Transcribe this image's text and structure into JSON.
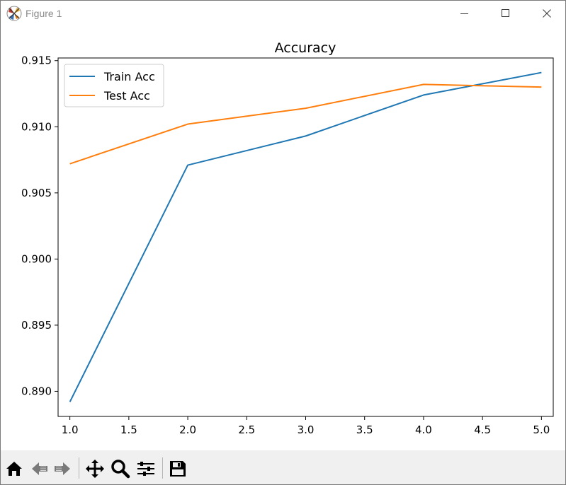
{
  "window": {
    "title": "Figure 1"
  },
  "toolbar": {
    "buttons": [
      {
        "icon": "home-icon"
      },
      {
        "icon": "back-icon"
      },
      {
        "icon": "forward-icon"
      },
      {
        "icon": "pan-icon"
      },
      {
        "icon": "zoom-icon"
      },
      {
        "icon": "configure-subplots-icon"
      },
      {
        "icon": "save-icon"
      }
    ]
  },
  "chart_data": {
    "type": "line",
    "title": "Accuracy",
    "xlabel": "",
    "ylabel": "",
    "x": [
      1.0,
      2.0,
      3.0,
      4.0,
      5.0
    ],
    "series": [
      {
        "name": "Train Acc",
        "color": "#1f77b4",
        "values": [
          0.8892,
          0.9071,
          0.9093,
          0.9124,
          0.9141
        ]
      },
      {
        "name": "Test Acc",
        "color": "#ff7f0e",
        "values": [
          0.9072,
          0.9102,
          0.9114,
          0.9132,
          0.913
        ]
      }
    ],
    "xlim": [
      0.9,
      5.1
    ],
    "ylim": [
      0.8881,
      0.9152
    ],
    "xticks": [
      "1.0",
      "1.5",
      "2.0",
      "2.5",
      "3.0",
      "3.5",
      "4.0",
      "4.5",
      "5.0"
    ],
    "yticks": [
      "0.890",
      "0.895",
      "0.900",
      "0.905",
      "0.910",
      "0.915"
    ],
    "legend_position": "upper-left",
    "grid": false
  }
}
